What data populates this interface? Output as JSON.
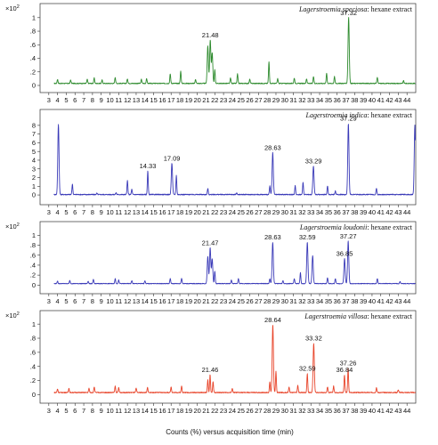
{
  "chart_data": [
    {
      "type": "line",
      "title_species": "Lagerstroemia speciosa",
      "title_suffix": ": hexane extract",
      "scale_label": "×10",
      "scale_exp": "2",
      "color": "#2e8b2e",
      "ylim": [
        0,
        1.05
      ],
      "yticks": [
        0,
        0.2,
        0.4,
        0.6,
        0.8,
        1
      ],
      "ytick_labels": [
        "0",
        ".2",
        ".4",
        ".6",
        ".8",
        "1"
      ],
      "baseline": 0.03,
      "peaks": [
        {
          "x": 4.0,
          "y": 0.06
        },
        {
          "x": 5.5,
          "y": 0.05
        },
        {
          "x": 7.4,
          "y": 0.06
        },
        {
          "x": 8.2,
          "y": 0.08
        },
        {
          "x": 9.1,
          "y": 0.05
        },
        {
          "x": 10.6,
          "y": 0.09
        },
        {
          "x": 12.0,
          "y": 0.07
        },
        {
          "x": 13.6,
          "y": 0.06
        },
        {
          "x": 14.2,
          "y": 0.07
        },
        {
          "x": 16.9,
          "y": 0.14
        },
        {
          "x": 18.1,
          "y": 0.18
        },
        {
          "x": 19.8,
          "y": 0.06
        },
        {
          "x": 21.2,
          "y": 0.55
        },
        {
          "x": 21.48,
          "y": 0.64
        },
        {
          "x": 21.7,
          "y": 0.45
        },
        {
          "x": 22.0,
          "y": 0.2
        },
        {
          "x": 23.8,
          "y": 0.08
        },
        {
          "x": 24.6,
          "y": 0.14
        },
        {
          "x": 26.0,
          "y": 0.06
        },
        {
          "x": 28.2,
          "y": 0.32
        },
        {
          "x": 29.2,
          "y": 0.07
        },
        {
          "x": 31.1,
          "y": 0.08
        },
        {
          "x": 32.5,
          "y": 0.07
        },
        {
          "x": 33.3,
          "y": 0.1
        },
        {
          "x": 34.8,
          "y": 0.15
        },
        {
          "x": 35.7,
          "y": 0.1
        },
        {
          "x": 37.32,
          "y": 0.97
        },
        {
          "x": 40.6,
          "y": 0.09
        },
        {
          "x": 43.6,
          "y": 0.04
        }
      ],
      "labels": [
        {
          "x": 21.48,
          "text": "21.48"
        },
        {
          "x": 37.32,
          "text": "37.32"
        }
      ]
    },
    {
      "type": "line",
      "title_species": "Lagerstroemia indica",
      "title_suffix": ": hexane extract",
      "scale_label": "",
      "scale_exp": "",
      "color": "#3a3ab8",
      "ylim": [
        -0.3,
        8.6
      ],
      "yticks": [
        0,
        1,
        2,
        3,
        4,
        5,
        6,
        7,
        8
      ],
      "ytick_labels": [
        "0",
        "1",
        "2",
        "3",
        "4",
        "5",
        "6",
        "7",
        "8"
      ],
      "baseline": 0.05,
      "peaks": [
        {
          "x": 4.1,
          "y": 8.1
        },
        {
          "x": 5.7,
          "y": 1.2
        },
        {
          "x": 8.5,
          "y": 0.15
        },
        {
          "x": 10.7,
          "y": 0.2
        },
        {
          "x": 12.0,
          "y": 1.6
        },
        {
          "x": 12.5,
          "y": 0.6
        },
        {
          "x": 14.33,
          "y": 2.7
        },
        {
          "x": 17.09,
          "y": 3.6
        },
        {
          "x": 17.6,
          "y": 2.2
        },
        {
          "x": 21.2,
          "y": 0.7
        },
        {
          "x": 24.5,
          "y": 0.2
        },
        {
          "x": 28.3,
          "y": 1.0
        },
        {
          "x": 28.63,
          "y": 4.8
        },
        {
          "x": 31.2,
          "y": 1.0
        },
        {
          "x": 32.1,
          "y": 1.4
        },
        {
          "x": 33.29,
          "y": 3.3
        },
        {
          "x": 34.9,
          "y": 1.0
        },
        {
          "x": 35.8,
          "y": 0.4
        },
        {
          "x": 37.29,
          "y": 8.2
        },
        {
          "x": 40.5,
          "y": 0.7
        },
        {
          "x": 44.9,
          "y": 8.0
        }
      ],
      "labels": [
        {
          "x": 14.33,
          "text": "14.33"
        },
        {
          "x": 17.09,
          "text": "17.09"
        },
        {
          "x": 28.63,
          "text": "28.63"
        },
        {
          "x": 33.29,
          "text": "33.29"
        },
        {
          "x": 37.29,
          "text": "37.29"
        }
      ]
    },
    {
      "type": "line",
      "title_species": "Lagerstroemia loudonii",
      "title_suffix": ": hexane extract",
      "scale_label": "×10",
      "scale_exp": "2",
      "color": "#3a3ab8",
      "ylim": [
        -0.03,
        1.06
      ],
      "yticks": [
        0,
        0.2,
        0.4,
        0.6,
        0.8,
        1
      ],
      "ytick_labels": [
        "0",
        ".2",
        ".4",
        ".6",
        ".8",
        "1"
      ],
      "baseline": 0.03,
      "peaks": [
        {
          "x": 4.0,
          "y": 0.05
        },
        {
          "x": 5.4,
          "y": 0.06
        },
        {
          "x": 7.5,
          "y": 0.05
        },
        {
          "x": 8.1,
          "y": 0.08
        },
        {
          "x": 10.6,
          "y": 0.1
        },
        {
          "x": 11.0,
          "y": 0.07
        },
        {
          "x": 12.5,
          "y": 0.06
        },
        {
          "x": 14.0,
          "y": 0.06
        },
        {
          "x": 16.9,
          "y": 0.1
        },
        {
          "x": 18.2,
          "y": 0.11
        },
        {
          "x": 21.2,
          "y": 0.55
        },
        {
          "x": 21.47,
          "y": 0.72
        },
        {
          "x": 21.7,
          "y": 0.5
        },
        {
          "x": 22.0,
          "y": 0.25
        },
        {
          "x": 23.9,
          "y": 0.07
        },
        {
          "x": 24.7,
          "y": 0.1
        },
        {
          "x": 28.3,
          "y": 0.1
        },
        {
          "x": 28.63,
          "y": 0.83
        },
        {
          "x": 29.8,
          "y": 0.06
        },
        {
          "x": 31.1,
          "y": 0.1
        },
        {
          "x": 31.8,
          "y": 0.22
        },
        {
          "x": 32.59,
          "y": 0.83
        },
        {
          "x": 33.2,
          "y": 0.56
        },
        {
          "x": 34.9,
          "y": 0.12
        },
        {
          "x": 35.8,
          "y": 0.1
        },
        {
          "x": 36.85,
          "y": 0.5
        },
        {
          "x": 37.27,
          "y": 0.85
        },
        {
          "x": 40.6,
          "y": 0.1
        },
        {
          "x": 43.2,
          "y": 0.04
        }
      ],
      "labels": [
        {
          "x": 21.47,
          "text": "21.47"
        },
        {
          "x": 28.63,
          "text": "28.63"
        },
        {
          "x": 32.59,
          "text": "32.59"
        },
        {
          "x": 36.85,
          "text": "36.85"
        },
        {
          "x": 37.27,
          "text": "37.27"
        }
      ]
    },
    {
      "type": "line",
      "title_species": "Lagerstroemia villosa",
      "title_suffix": ": hexane extract",
      "scale_label": "×10",
      "scale_exp": "2",
      "color": "#e8442a",
      "ylim": [
        -0.02,
        1.04
      ],
      "yticks": [
        0,
        0.2,
        0.4,
        0.6,
        0.8,
        1
      ],
      "ytick_labels": [
        "0",
        ".2",
        ".4",
        ".6",
        ".8",
        "1"
      ],
      "baseline": 0.03,
      "peaks": [
        {
          "x": 4.0,
          "y": 0.05
        },
        {
          "x": 5.3,
          "y": 0.06
        },
        {
          "x": 7.6,
          "y": 0.06
        },
        {
          "x": 8.2,
          "y": 0.08
        },
        {
          "x": 10.6,
          "y": 0.09
        },
        {
          "x": 11.0,
          "y": 0.07
        },
        {
          "x": 13.0,
          "y": 0.06
        },
        {
          "x": 14.3,
          "y": 0.07
        },
        {
          "x": 17.0,
          "y": 0.08
        },
        {
          "x": 18.2,
          "y": 0.09
        },
        {
          "x": 21.2,
          "y": 0.18
        },
        {
          "x": 21.46,
          "y": 0.25
        },
        {
          "x": 21.8,
          "y": 0.15
        },
        {
          "x": 24.0,
          "y": 0.06
        },
        {
          "x": 28.3,
          "y": 0.15
        },
        {
          "x": 28.64,
          "y": 0.96
        },
        {
          "x": 29.0,
          "y": 0.3
        },
        {
          "x": 30.5,
          "y": 0.08
        },
        {
          "x": 31.5,
          "y": 0.1
        },
        {
          "x": 32.59,
          "y": 0.27
        },
        {
          "x": 33.32,
          "y": 0.7
        },
        {
          "x": 34.9,
          "y": 0.08
        },
        {
          "x": 35.6,
          "y": 0.09
        },
        {
          "x": 36.84,
          "y": 0.25
        },
        {
          "x": 37.26,
          "y": 0.35
        },
        {
          "x": 40.5,
          "y": 0.07
        },
        {
          "x": 43.0,
          "y": 0.04
        }
      ],
      "labels": [
        {
          "x": 21.46,
          "text": "21.46"
        },
        {
          "x": 28.64,
          "text": "28.64"
        },
        {
          "x": 32.59,
          "text": "32.59"
        },
        {
          "x": 33.32,
          "text": "33.32"
        },
        {
          "x": 36.84,
          "text": "36.84"
        },
        {
          "x": 37.26,
          "text": "37.26"
        }
      ]
    }
  ],
  "x_axis": {
    "xlim": [
      2.0,
      45.0
    ],
    "ticks": [
      3,
      4,
      5,
      6,
      7,
      8,
      9,
      10,
      11,
      12,
      13,
      14,
      15,
      16,
      17,
      18,
      19,
      20,
      21,
      22,
      23,
      24,
      25,
      26,
      27,
      28,
      29,
      30,
      31,
      32,
      33,
      34,
      35,
      36,
      37,
      38,
      39,
      40,
      41,
      42,
      43,
      44
    ]
  },
  "xlabel": "Counts (%) versus acquisition time (min)"
}
